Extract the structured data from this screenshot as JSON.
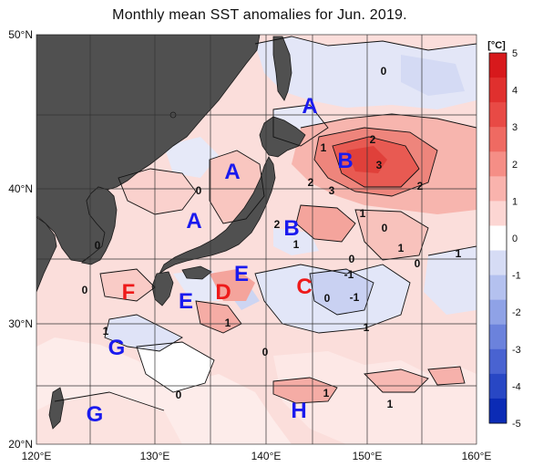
{
  "title": "Monthly mean SST anomalies for Jun. 2019.",
  "lat_labels": [
    "50°N",
    "40°N",
    "30°N",
    "20°N"
  ],
  "lon_labels": [
    "120°E",
    "130°E",
    "140°E",
    "150°E",
    "160°E"
  ],
  "colorbar": {
    "unit": "[°C]",
    "ticks": [
      "5",
      "4",
      "3",
      "2",
      "1",
      "0",
      "-1",
      "-2",
      "-3",
      "-4",
      "-5"
    ],
    "colors": [
      "#d7191c",
      "#e0302e",
      "#e84a45",
      "#ef6a62",
      "#f58e86",
      "#f9b3ad",
      "#fcd6d3",
      "#ffffff",
      "#d6dcf5",
      "#b4c1ef",
      "#8fa2e6",
      "#6b82dc",
      "#4963d1",
      "#2847c4",
      "#0b2bb5"
    ]
  },
  "regions": [
    {
      "label": "A",
      "color": "#1a1aee"
    },
    {
      "label": "A",
      "color": "#1a1aee"
    },
    {
      "label": "A",
      "color": "#1a1aee"
    },
    {
      "label": "B",
      "color": "#1a1aee"
    },
    {
      "label": "B",
      "color": "#1a1aee"
    },
    {
      "label": "C",
      "color": "#ee1a1a"
    },
    {
      "label": "D",
      "color": "#ee1a1a"
    },
    {
      "label": "E",
      "color": "#1a1aee"
    },
    {
      "label": "E",
      "color": "#1a1aee"
    },
    {
      "label": "F",
      "color": "#ee1a1a"
    },
    {
      "label": "G",
      "color": "#1a1aee"
    },
    {
      "label": "G",
      "color": "#1a1aee"
    },
    {
      "label": "H",
      "color": "#1a1aee"
    }
  ],
  "contour_labels": [
    "0",
    "1",
    "2",
    "3",
    "2",
    "3",
    "2",
    "1",
    "2",
    "0",
    "1",
    "0",
    "1",
    "0",
    "-1",
    "-1",
    "0",
    "1",
    "0",
    "1",
    "1",
    "0",
    "0",
    "1",
    "0",
    "0",
    "1",
    "1"
  ],
  "colors": {
    "land": "#505050",
    "warm_light": "#fbd0cd",
    "warm_mid": "#f29b94",
    "warm_strong": "#e8524b",
    "cool_light": "#dfe3f7",
    "cool_mid": "#b8c3ee",
    "grid": "#333333"
  }
}
